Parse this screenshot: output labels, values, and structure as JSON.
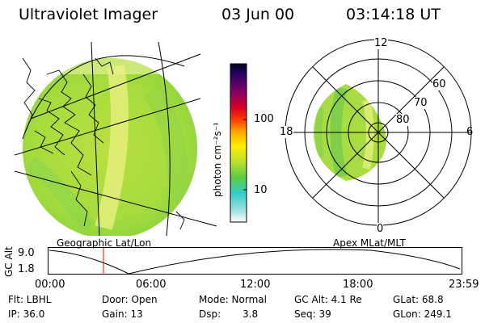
{
  "header": {
    "title": "Ultraviolet Imager",
    "date": "03 Jun 00",
    "time": "03:14:18 UT"
  },
  "colorbar": {
    "unit_label": "photon cm⁻²s⁻¹",
    "ticks": [
      "100",
      "10"
    ],
    "colors": [
      "#000044",
      "#330066",
      "#660099",
      "#990066",
      "#cc0033",
      "#ff0000",
      "#ff6600",
      "#ffaa00",
      "#ffee00",
      "#ccee33",
      "#88dd33",
      "#33cc66",
      "#33cccc",
      "#66ddee",
      "#bbeeee",
      "#ffffff"
    ]
  },
  "geo_panel": {
    "caption": "Geographic Lat/Lon"
  },
  "polar_panel": {
    "caption": "Apex MLat/MLT",
    "mlt_labels": {
      "top": "12",
      "right": "6",
      "bottom": "0",
      "left": "18"
    },
    "lat_labels": [
      "60",
      "70",
      "80"
    ]
  },
  "altitude_plot": {
    "ylabel": "GC Alt",
    "yticks": [
      "9.0",
      "1.8"
    ],
    "xticks": [
      "00:00",
      "06:00",
      "12:00",
      "18:00",
      "23:59"
    ],
    "marker_time": "03:14"
  },
  "footer": {
    "flt": "Flt: LBHL",
    "ip": "IP: 36.0",
    "door": "Door: Open",
    "gain": "Gain: 13",
    "mode": "Mode: Normal",
    "dsp_label": "Dsp:",
    "dsp_value": "3.8",
    "gc_alt": "GC Alt: 4.1 Re",
    "seq": "Seq: 39",
    "glat": "GLat: 68.8",
    "glon": "GLon: 249.1"
  }
}
